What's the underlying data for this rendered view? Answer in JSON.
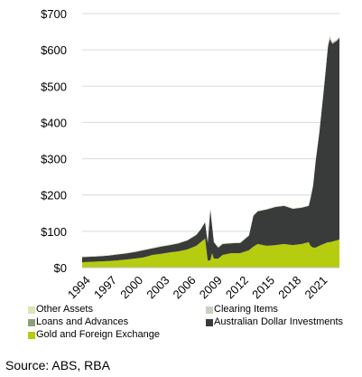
{
  "chart_data": {
    "type": "area",
    "title": "",
    "xlabel": "",
    "ylabel": "",
    "stacked": true,
    "ylim": [
      0,
      700
    ],
    "y_ticks": [
      "$0",
      "$100",
      "$200",
      "$300",
      "$400",
      "$500",
      "$600",
      "$700"
    ],
    "y_tick_values": [
      0,
      100,
      200,
      300,
      400,
      500,
      600,
      700
    ],
    "x_ticks": [
      "1994",
      "1997",
      "2000",
      "2003",
      "2006",
      "2009",
      "2012",
      "2015",
      "2018",
      "2021"
    ],
    "x_tick_values": [
      1994,
      1997,
      2000,
      2003,
      2006,
      2009,
      2012,
      2015,
      2018,
      2021
    ],
    "xlim": [
      1994,
      2023.3
    ],
    "grid": "horizontal",
    "legend_position": "bottom",
    "x": [
      1994,
      1995,
      1996,
      1997,
      1998,
      1999,
      2000,
      2001,
      2002,
      2003,
      2004,
      2005,
      2006,
      2007,
      2007.5,
      2008,
      2008.3,
      2008.6,
      2008.8,
      2009,
      2009.5,
      2010,
      2011,
      2012,
      2013,
      2013.5,
      2014,
      2015,
      2016,
      2017,
      2018,
      2019,
      2019.8,
      2020,
      2020.3,
      2020.6,
      2021,
      2021.5,
      2022,
      2022.2,
      2022.5,
      2023,
      2023.3
    ],
    "series": [
      {
        "name": "Gold and Foreign Exchange",
        "color": "#b5cc0f",
        "values": [
          15,
          16,
          17,
          18,
          20,
          22,
          25,
          28,
          35,
          38,
          42,
          45,
          50,
          60,
          70,
          80,
          20,
          20,
          40,
          25,
          25,
          35,
          40,
          40,
          48,
          58,
          65,
          60,
          62,
          65,
          62,
          65,
          70,
          60,
          55,
          55,
          60,
          65,
          70,
          70,
          72,
          75,
          78
        ]
      },
      {
        "name": "Loans and Advances",
        "color": "#8ca07a",
        "values": [
          0,
          0,
          0,
          0,
          0,
          0,
          0,
          0,
          0,
          0,
          0,
          0,
          0,
          0,
          0,
          0,
          0,
          0,
          0,
          0,
          0,
          0,
          0,
          0,
          0,
          0,
          0,
          0,
          0,
          0,
          0,
          0,
          0,
          0,
          0,
          0,
          0,
          0,
          0,
          0,
          0,
          0,
          0
        ]
      },
      {
        "name": "Australian Dollar Investments",
        "color": "#393b3b",
        "values": [
          14,
          14,
          14,
          15,
          16,
          17,
          18,
          20,
          18,
          20,
          20,
          22,
          25,
          30,
          35,
          45,
          48,
          140,
          75,
          45,
          30,
          30,
          27,
          28,
          40,
          85,
          90,
          100,
          105,
          105,
          100,
          100,
          100,
          130,
          170,
          240,
          310,
          420,
          540,
          560,
          545,
          550,
          555
        ]
      },
      {
        "name": "Clearing Items",
        "color": "#c8d0c0",
        "values": [
          1,
          1,
          1,
          1,
          1,
          1,
          1,
          1,
          1,
          1,
          1,
          1,
          1,
          1,
          1,
          1,
          1,
          1,
          1,
          1,
          1,
          1,
          1,
          1,
          1,
          1,
          1,
          1,
          1,
          1,
          1,
          1,
          1,
          1,
          1,
          1,
          2,
          3,
          5,
          8,
          4,
          3,
          3
        ]
      },
      {
        "name": "Other Assets",
        "color": "#dce5b6",
        "values": [
          1,
          1,
          1,
          1,
          1,
          1,
          1,
          1,
          1,
          1,
          1,
          1,
          1,
          1,
          1,
          1,
          1,
          1,
          1,
          1,
          1,
          1,
          1,
          1,
          1,
          1,
          1,
          1,
          1,
          1,
          1,
          1,
          1,
          1,
          1,
          1,
          1,
          1,
          1,
          2,
          1,
          1,
          1
        ]
      }
    ]
  },
  "legend": [
    {
      "label": "Other Assets",
      "color": "#dce5b6"
    },
    {
      "label": "Clearing Items",
      "color": "#c8d0c0"
    },
    {
      "label": "Loans and Advances",
      "color": "#8ca07a"
    },
    {
      "label": "Australian Dollar Investments",
      "color": "#393b3b"
    },
    {
      "label": "Gold and Foreign Exchange",
      "color": "#b5cc0f"
    }
  ],
  "source": "Source: ABS, RBA"
}
